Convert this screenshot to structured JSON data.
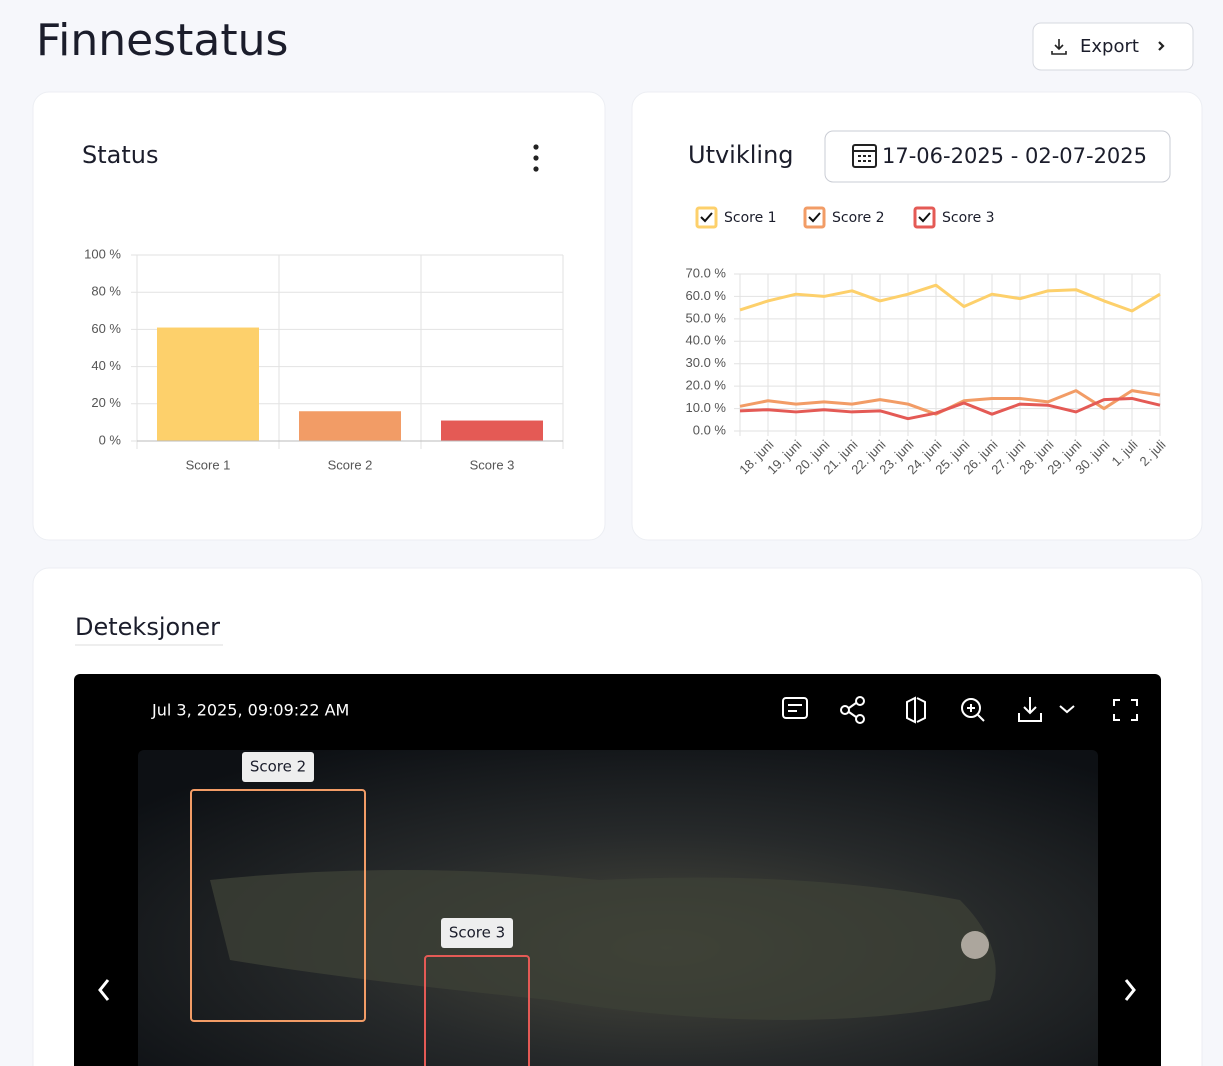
{
  "page": {
    "title": "Finnestatus",
    "export": "Export"
  },
  "chart_data": [
    {
      "type": "bar",
      "title": "Status",
      "categories": [
        "Score 1",
        "Score 2",
        "Score 3"
      ],
      "values": [
        61,
        16,
        11
      ],
      "colors": [
        "#fdd06b",
        "#f29c66",
        "#e45a55"
      ],
      "ylim": [
        0,
        100
      ],
      "yticks": [
        {
          "value": 0,
          "label": "0 %"
        },
        {
          "value": 20,
          "label": "20 %"
        },
        {
          "value": 40,
          "label": "40 %"
        },
        {
          "value": 60,
          "label": "60 %"
        },
        {
          "value": 80,
          "label": "80 %"
        },
        {
          "value": 100,
          "label": "100 %"
        }
      ],
      "grid": true
    },
    {
      "type": "line",
      "title": "Utvikling",
      "date_range": "17-06-2025 - 02-07-2025",
      "categories": [
        null,
        "18. juni",
        "19. juni",
        "20. juni",
        "21. juni",
        "22. juni",
        "23. juni",
        "24. juni",
        "25. juni",
        "26. juni",
        "27. juni",
        "28. juni",
        "29. juni",
        "30. juni",
        "1. juli",
        "2. juli"
      ],
      "series": [
        {
          "name": "Score 1",
          "color": "#fdd06b",
          "values": [
            54,
            58,
            61,
            60,
            62.5,
            58,
            61,
            65,
            55.5,
            61,
            59,
            62.5,
            63,
            58,
            53.5,
            61
          ]
        },
        {
          "name": "Score 2",
          "color": "#f29c66",
          "values": [
            11,
            13.5,
            12,
            13,
            12,
            14,
            12,
            7.5,
            13.5,
            14.5,
            14.5,
            13,
            18,
            10,
            18,
            16
          ]
        },
        {
          "name": "Score 3",
          "color": "#e45a55",
          "values": [
            9,
            9.5,
            8.5,
            9.5,
            8.5,
            9,
            5.5,
            8,
            12.5,
            7.5,
            12,
            11.5,
            8.5,
            14,
            14.5,
            11.5
          ]
        }
      ],
      "ylim": [
        0,
        70
      ],
      "yticks": [
        {
          "value": 0,
          "label": "0.0 %"
        },
        {
          "value": 10,
          "label": "10.0 %"
        },
        {
          "value": 20,
          "label": "20.0 %"
        },
        {
          "value": 30,
          "label": "30.0 %"
        },
        {
          "value": 40,
          "label": "40.0 %"
        },
        {
          "value": 50,
          "label": "50.0 %"
        },
        {
          "value": 60,
          "label": "60.0 %"
        },
        {
          "value": 70,
          "label": "70.0 %"
        }
      ],
      "grid": true
    }
  ],
  "detections": {
    "title": "Deteksjoner",
    "timestamp": "Jul 3, 2025, 09:09:22 AM",
    "boxes": [
      {
        "label": "Score 2"
      },
      {
        "label": "Score 3"
      }
    ]
  }
}
